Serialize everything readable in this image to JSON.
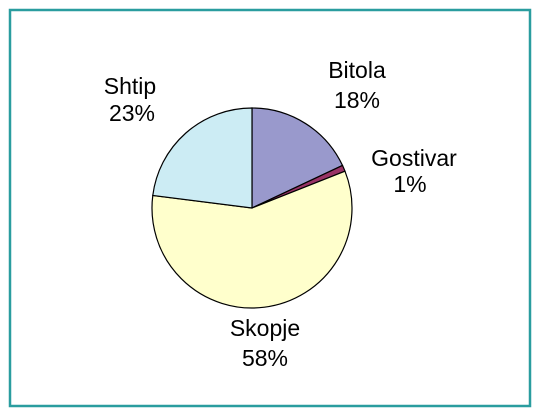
{
  "chart_data": {
    "type": "pie",
    "categories": [
      "Bitola",
      "Gostivar",
      "Skopje",
      "Shtip"
    ],
    "values": [
      18,
      1,
      58,
      23
    ],
    "value_labels": [
      "18%",
      "1%",
      "58%",
      "23%"
    ],
    "colors": [
      "#9999cc",
      "#993366",
      "#ffffcc",
      "#ccecf4"
    ]
  }
}
